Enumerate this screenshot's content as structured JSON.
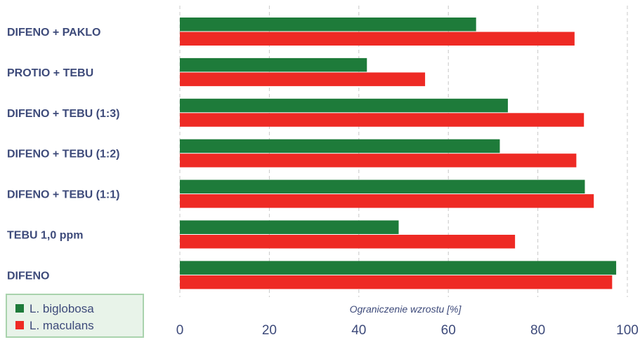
{
  "chart_data": {
    "type": "bar",
    "orientation": "horizontal",
    "categories": [
      "DIFENO + PAKLO",
      "PROTIO + TEBU",
      "DIFENO + TEBU (1:3)",
      "DIFENO + TEBU (1:2)",
      "DIFENO + TEBU (1:1)",
      "TEBU 1,0 ppm",
      "DIFENO"
    ],
    "series": [
      {
        "name": "L. biglobosa",
        "color": "#1e7b3a",
        "values": [
          66.2,
          41.8,
          73.3,
          71.5,
          90.5,
          48.9,
          97.5
        ]
      },
      {
        "name": "L. maculans",
        "color": "#ee2a24",
        "values": [
          88.2,
          54.8,
          90.3,
          88.6,
          92.5,
          74.9,
          96.6
        ]
      }
    ],
    "xlabel": "Ograniczenie wzrostu [%]",
    "xlim": [
      0,
      100
    ],
    "xticks": [
      "0",
      "20",
      "40",
      "60",
      "80",
      "100"
    ],
    "grid": "vertical dashed",
    "legend_position": "bottom-left",
    "colors": {
      "category_label": "#3d4a7a",
      "tick_label": "#3d4a7a",
      "axis_title": "#3d4a7a",
      "gridline": "#c8c8c8",
      "legend_bg": "#e8f3e9",
      "legend_border": "#a9d3ad"
    }
  }
}
